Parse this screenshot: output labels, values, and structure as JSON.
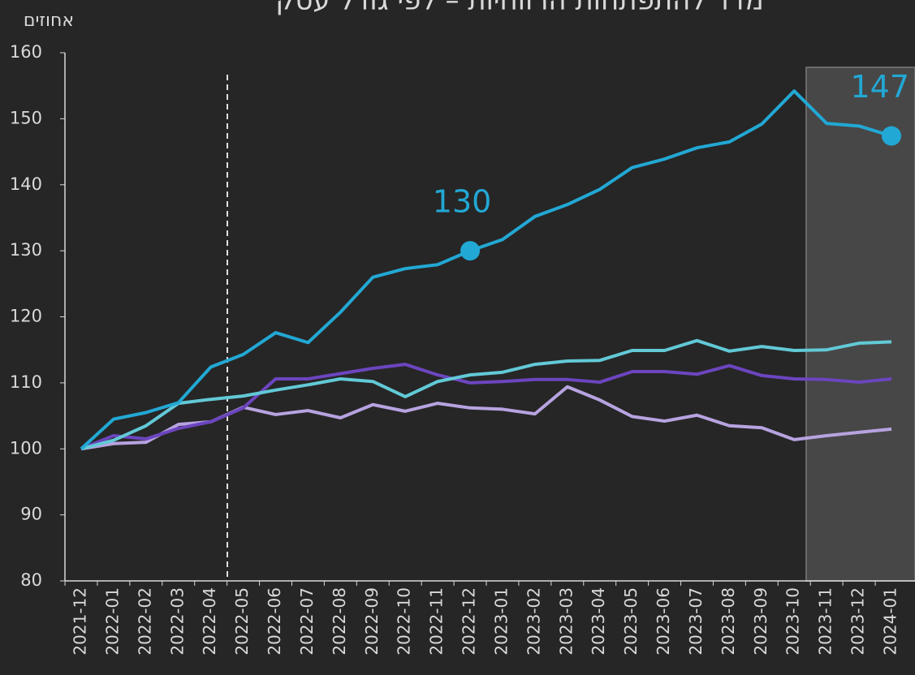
{
  "chart_data": {
    "type": "line",
    "title": "מדד להתפתחות הרווחיות – לפי גודל עסק",
    "y_label": "אחוזים",
    "categories": [
      "2021-12",
      "2022-01",
      "2022-02",
      "2022-03",
      "2022-04",
      "2022-05",
      "2022-06",
      "2022-07",
      "2022-08",
      "2022-09",
      "2022-10",
      "2022-11",
      "2022-12",
      "2023-01",
      "2023-02",
      "2023-03",
      "2023-04",
      "2023-05",
      "2023-06",
      "2023-07",
      "2023-08",
      "2023-09",
      "2023-10",
      "2023-11",
      "2023-12",
      "2024-01"
    ],
    "series": [
      {
        "color": "#22a8d4",
        "values": [
          100,
          104.5,
          105.5,
          107,
          112.4,
          114.3,
          117.6,
          116.1,
          120.7,
          126,
          127.3,
          127.9,
          130,
          131.7,
          135.2,
          137,
          139.3,
          142.6,
          143.9,
          145.6,
          146.5,
          149.2,
          154.2,
          149.3,
          148.9,
          147.4
        ],
        "value_labels": [
          null,
          null,
          null,
          null,
          null,
          null,
          null,
          null,
          null,
          null,
          null,
          null,
          "130",
          null,
          null,
          null,
          null,
          null,
          null,
          null,
          null,
          null,
          null,
          null,
          null,
          "147"
        ]
      },
      {
        "color": "#62c9d6",
        "values": [
          100,
          101.3,
          103.5,
          106.9,
          107.5,
          108,
          108.9,
          109.7,
          110.6,
          110.2,
          107.9,
          110.2,
          111.2,
          111.6,
          112.8,
          113.3,
          113.4,
          114.9,
          114.9,
          116.4,
          114.8,
          115.5,
          114.9,
          115,
          116,
          116.2
        ]
      },
      {
        "color": "#6c45bf",
        "values": [
          100,
          102,
          101.5,
          103.1,
          104.1,
          106.2,
          110.6,
          110.6,
          111.4,
          112.2,
          112.8,
          111.2,
          110,
          110.2,
          110.5,
          110.5,
          110.1,
          111.7,
          111.7,
          111.3,
          112.6,
          111.1,
          110.6,
          110.5,
          110.1,
          110.6
        ]
      },
      {
        "color": "#b7a3e0",
        "values": [
          100,
          100.8,
          101,
          103.7,
          104.1,
          106.3,
          105.2,
          105.8,
          104.7,
          106.7,
          105.7,
          106.9,
          106.2,
          106,
          105.3,
          109.4,
          107.4,
          104.9,
          104.2,
          105.1,
          103.5,
          103.2,
          101.4,
          102,
          102.5,
          103
        ]
      }
    ],
    "ylim": [
      80,
      160
    ],
    "yticks": [
      80,
      90,
      100,
      110,
      120,
      130,
      140,
      150,
      160
    ]
  }
}
